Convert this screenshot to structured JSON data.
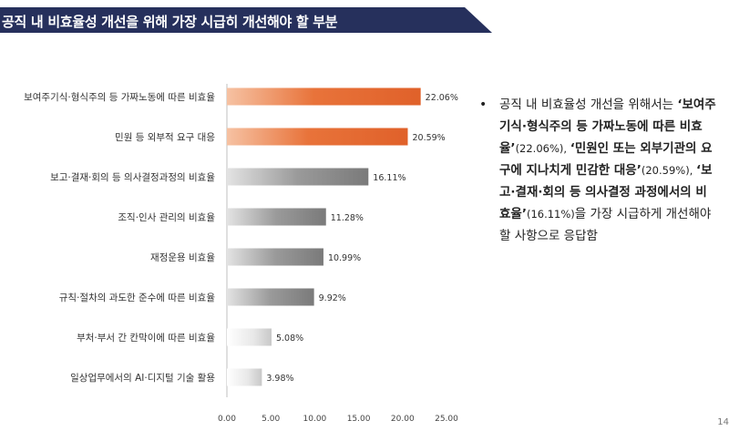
{
  "header": {
    "title": "공직 내 비효율성 개선을 위해 가장 시급히 개선해야 할 부분"
  },
  "chart_data": {
    "type": "bar",
    "orientation": "horizontal",
    "categories": [
      "보여주기식·형식주의 등 가짜노동에 따른 비효율",
      "민원 등 외부적 요구 대응",
      "보고·결재·회의 등 의사결정과정의 비효율",
      "조직·인사 관리의 비효율",
      "재정운용 비효율",
      "규칙·절차의 과도한 준수에 따른 비효율",
      "부처·부서 간 칸막이에 따른 비효율",
      "일상업무에서의 AI·디지털 기술 활용"
    ],
    "values": [
      22.06,
      20.59,
      16.11,
      11.28,
      10.99,
      9.92,
      5.08,
      3.98
    ],
    "value_labels": [
      "22.06%",
      "20.59%",
      "16.11%",
      "11.28%",
      "10.99%",
      "9.92%",
      "5.08%",
      "3.98%"
    ],
    "colors": [
      "#e8733a",
      "#e8733a",
      "#8c8c8c",
      "#8c8c8c",
      "#8c8c8c",
      "#8c8c8c",
      "#d9d9d9",
      "#d9d9d9"
    ],
    "xlim": [
      0,
      25
    ],
    "xticks": [
      0,
      5,
      10,
      15,
      20,
      25
    ],
    "xtick_labels": [
      "0.00",
      "5.00",
      "10.00",
      "15.00",
      "20.00",
      "25.00"
    ],
    "title": "",
    "xlabel": "",
    "ylabel": "",
    "grid": false,
    "legend": "none"
  },
  "summary": {
    "bullet_symbol": "•",
    "segments": [
      {
        "text": "공직 내 비효율성 개선을 위해서는 ",
        "style": "normal"
      },
      {
        "text": "‘보여주기식·형식주의 등 가짜노동에 따른 비효율’",
        "style": "bold"
      },
      {
        "text": "(22.06%), ",
        "style": "small"
      },
      {
        "text": "‘민원인 또는 외부기관의 요구에 지나치게 민감한 대응’",
        "style": "bold"
      },
      {
        "text": "(20.59%), ",
        "style": "small"
      },
      {
        "text": "‘보고·결재·회의 등 의사결정 과정에서의 비효율’",
        "style": "bold"
      },
      {
        "text": "(16.11%)",
        "style": "small"
      },
      {
        "text": "을 가장 시급하게 개선해야 할 사항으로 응답함",
        "style": "normal"
      }
    ]
  },
  "page": {
    "number": "14"
  }
}
